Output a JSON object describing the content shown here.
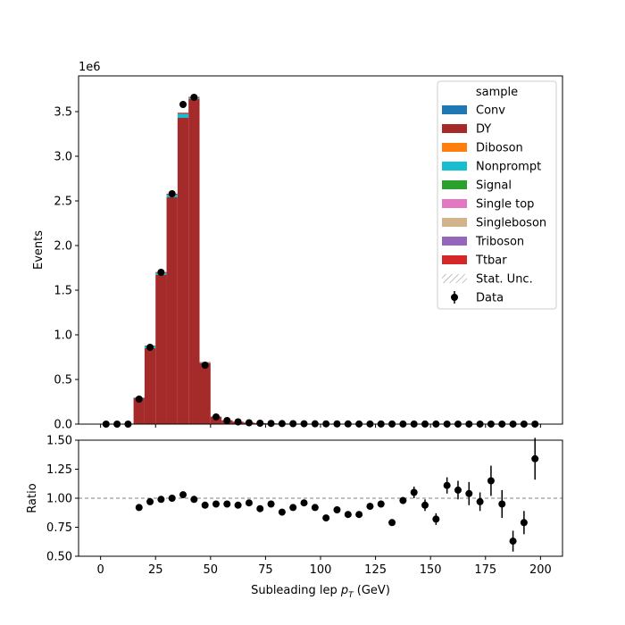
{
  "chart_data": [
    {
      "type": "bar",
      "subtype": "stacked-histogram-with-data",
      "xlim": [
        -10,
        210
      ],
      "ylim": [
        0,
        3900000
      ],
      "ylabel": "Events",
      "offset_label": "1e6",
      "bin_edges": [
        0,
        5,
        10,
        15,
        20,
        25,
        30,
        35,
        40,
        45,
        50,
        55,
        60,
        65,
        70,
        75,
        80,
        85,
        90,
        95,
        100,
        105,
        110,
        115,
        120,
        125,
        130,
        135,
        140,
        145,
        150,
        155,
        160,
        165,
        170,
        175,
        180,
        185,
        190,
        195,
        200
      ],
      "yticks": [
        0,
        500000,
        1000000,
        1500000,
        2000000,
        2500000,
        3000000,
        3500000
      ],
      "ytick_labels": [
        "0.0",
        "0.5",
        "1.0",
        "1.5",
        "2.0",
        "2.5",
        "3.0",
        "3.5"
      ],
      "series": [
        {
          "name": "DY",
          "color": "#a52a2a",
          "values": [
            0,
            0,
            0,
            290000,
            850000,
            1670000,
            2540000,
            3430000,
            3640000,
            680000,
            80000,
            40000,
            25000,
            15000,
            10000,
            8000,
            6000,
            5000,
            4000,
            3500,
            3000,
            2500,
            2000,
            1800,
            1500,
            1300,
            1100,
            1000,
            900,
            800,
            700,
            600,
            500,
            450,
            400,
            350,
            300,
            250,
            200,
            180
          ]
        },
        {
          "name": "Nonprompt",
          "color": "#17becf",
          "values": [
            0,
            0,
            0,
            6000,
            25000,
            25000,
            30000,
            45000,
            15000,
            8000,
            2000,
            1000,
            500,
            400,
            300,
            200,
            150,
            100,
            100,
            80,
            60,
            50,
            40,
            30,
            25,
            20,
            18,
            15,
            12,
            10,
            9,
            8,
            7,
            6,
            5,
            5,
            4,
            4,
            3,
            3
          ]
        },
        {
          "name": "Ttbar",
          "color": "#d62728",
          "values": [
            0,
            0,
            0,
            2000,
            5000,
            8000,
            10000,
            12000,
            10000,
            6000,
            4000,
            3000,
            2500,
            2000,
            1800,
            1500,
            1200,
            1000,
            900,
            800,
            700,
            600,
            500,
            450,
            400,
            350,
            300,
            280,
            250,
            220,
            200,
            180,
            160,
            140,
            120,
            110,
            100,
            90,
            80,
            70
          ]
        }
      ],
      "data_points": {
        "name": "Data",
        "x": [
          2.5,
          7.5,
          12.5,
          17.5,
          22.5,
          27.5,
          32.5,
          37.5,
          42.5,
          47.5,
          52.5,
          57.5,
          62.5,
          67.5,
          72.5,
          77.5,
          82.5,
          87.5,
          92.5,
          97.5,
          102.5,
          107.5,
          112.5,
          117.5,
          122.5,
          127.5,
          132.5,
          137.5,
          142.5,
          147.5,
          152.5,
          157.5,
          162.5,
          167.5,
          172.5,
          177.5,
          182.5,
          187.5,
          192.5,
          197.5
        ],
        "y": [
          0,
          0,
          0,
          280000,
          860000,
          1700000,
          2580000,
          3580000,
          3660000,
          660000,
          80000,
          40000,
          25000,
          15000,
          10000,
          8000,
          6000,
          5000,
          4000,
          3500,
          3000,
          2500,
          2000,
          1800,
          1500,
          1300,
          1100,
          1000,
          900,
          800,
          700,
          600,
          500,
          450,
          400,
          350,
          300,
          250,
          200,
          180
        ]
      },
      "legend": {
        "title": "sample",
        "placement": "top-right",
        "entries": [
          {
            "label": "Conv",
            "color": "#1f77b4",
            "kind": "patch"
          },
          {
            "label": "DY",
            "color": "#a52a2a",
            "kind": "patch"
          },
          {
            "label": "Diboson",
            "color": "#ff7f0e",
            "kind": "patch"
          },
          {
            "label": "Nonprompt",
            "color": "#17becf",
            "kind": "patch"
          },
          {
            "label": "Signal",
            "color": "#2ca02c",
            "kind": "patch"
          },
          {
            "label": "Single top",
            "color": "#e377c2",
            "kind": "patch"
          },
          {
            "label": "Singleboson",
            "color": "#d2b48c",
            "kind": "patch"
          },
          {
            "label": "Triboson",
            "color": "#9467bd",
            "kind": "patch"
          },
          {
            "label": "Ttbar",
            "color": "#d62728",
            "kind": "patch"
          },
          {
            "label": "Stat. Unc.",
            "color": "#888888",
            "kind": "hatch"
          },
          {
            "label": "Data",
            "color": "#000000",
            "kind": "marker"
          }
        ]
      }
    },
    {
      "type": "scatter",
      "subtype": "ratio-with-errorbars",
      "xlim": [
        -10,
        210
      ],
      "ylim": [
        0.5,
        1.5
      ],
      "xlabel": "Subleading lep p_T (GeV)",
      "xlabel_main": "Subleading lep ",
      "xlabel_sub": "T",
      "xlabel_unit": " (GeV)",
      "ylabel": "Ratio",
      "xticks": [
        0,
        25,
        50,
        75,
        100,
        125,
        150,
        175,
        200
      ],
      "xtick_labels": [
        "0",
        "25",
        "50",
        "75",
        "100",
        "125",
        "150",
        "175",
        "200"
      ],
      "yticks": [
        0.5,
        0.75,
        1.0,
        1.25,
        1.5
      ],
      "ytick_labels": [
        "0.50",
        "0.75",
        "1.00",
        "1.25",
        "1.50"
      ],
      "reference_line": 1.0,
      "x": [
        17.5,
        22.5,
        27.5,
        32.5,
        37.5,
        42.5,
        47.5,
        52.5,
        57.5,
        62.5,
        67.5,
        72.5,
        77.5,
        82.5,
        87.5,
        92.5,
        97.5,
        102.5,
        107.5,
        112.5,
        117.5,
        122.5,
        127.5,
        132.5,
        137.5,
        142.5,
        147.5,
        152.5,
        157.5,
        162.5,
        167.5,
        172.5,
        177.5,
        182.5,
        187.5,
        192.5,
        197.5
      ],
      "y": [
        0.92,
        0.97,
        0.99,
        1.0,
        1.03,
        0.99,
        0.94,
        0.95,
        0.95,
        0.94,
        0.96,
        0.91,
        0.95,
        0.88,
        0.92,
        0.96,
        0.92,
        0.83,
        0.9,
        0.86,
        0.86,
        0.93,
        0.95,
        0.79,
        0.98,
        1.05,
        0.94,
        0.82,
        1.11,
        1.07,
        1.04,
        0.97,
        1.15,
        0.95,
        0.63,
        0.79,
        1.34
      ],
      "err": [
        0.005,
        0.005,
        0.005,
        0.005,
        0.005,
        0.005,
        0.005,
        0.005,
        0.005,
        0.005,
        0.005,
        0.005,
        0.005,
        0.005,
        0.005,
        0.005,
        0.005,
        0.005,
        0.005,
        0.005,
        0.01,
        0.02,
        0.03,
        0.02,
        0.03,
        0.05,
        0.05,
        0.05,
        0.07,
        0.08,
        0.1,
        0.08,
        0.13,
        0.12,
        0.09,
        0.1,
        0.18
      ]
    }
  ]
}
